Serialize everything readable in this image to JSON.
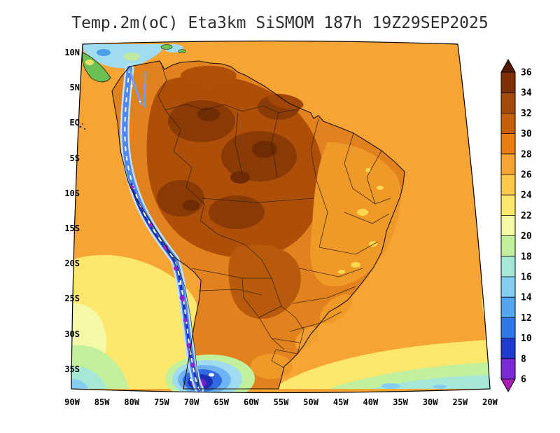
{
  "title": "Temp.2m(oC) Eta3km SiSMOM 187h 19Z29SEP2025",
  "axes": {
    "lat_ticks": [
      "10N",
      "5N",
      "EQ",
      "5S",
      "10S",
      "15S",
      "20S",
      "25S",
      "30S",
      "35S"
    ],
    "lon_ticks": [
      "90W",
      "85W",
      "80W",
      "75W",
      "70W",
      "65W",
      "60W",
      "55W",
      "50W",
      "45W",
      "40W",
      "35W",
      "30W",
      "25W",
      "20W"
    ]
  },
  "colorbar": {
    "tick_labels": [
      "36",
      "34",
      "32",
      "30",
      "28",
      "26",
      "24",
      "22",
      "20",
      "18",
      "16",
      "14",
      "12",
      "10",
      "8",
      "6"
    ],
    "colors_top_to_bottom": [
      "#541a02",
      "#7f2f05",
      "#a34a08",
      "#c55f0a",
      "#ea7e12",
      "#f6a434",
      "#fcc94a",
      "#fde76c",
      "#f4f9a6",
      "#c3f09c",
      "#a5e8d8",
      "#86cdf2",
      "#55a6ef",
      "#2f79e6",
      "#1f3cd0",
      "#7a2ad2",
      "#a81fb5"
    ]
  }
}
